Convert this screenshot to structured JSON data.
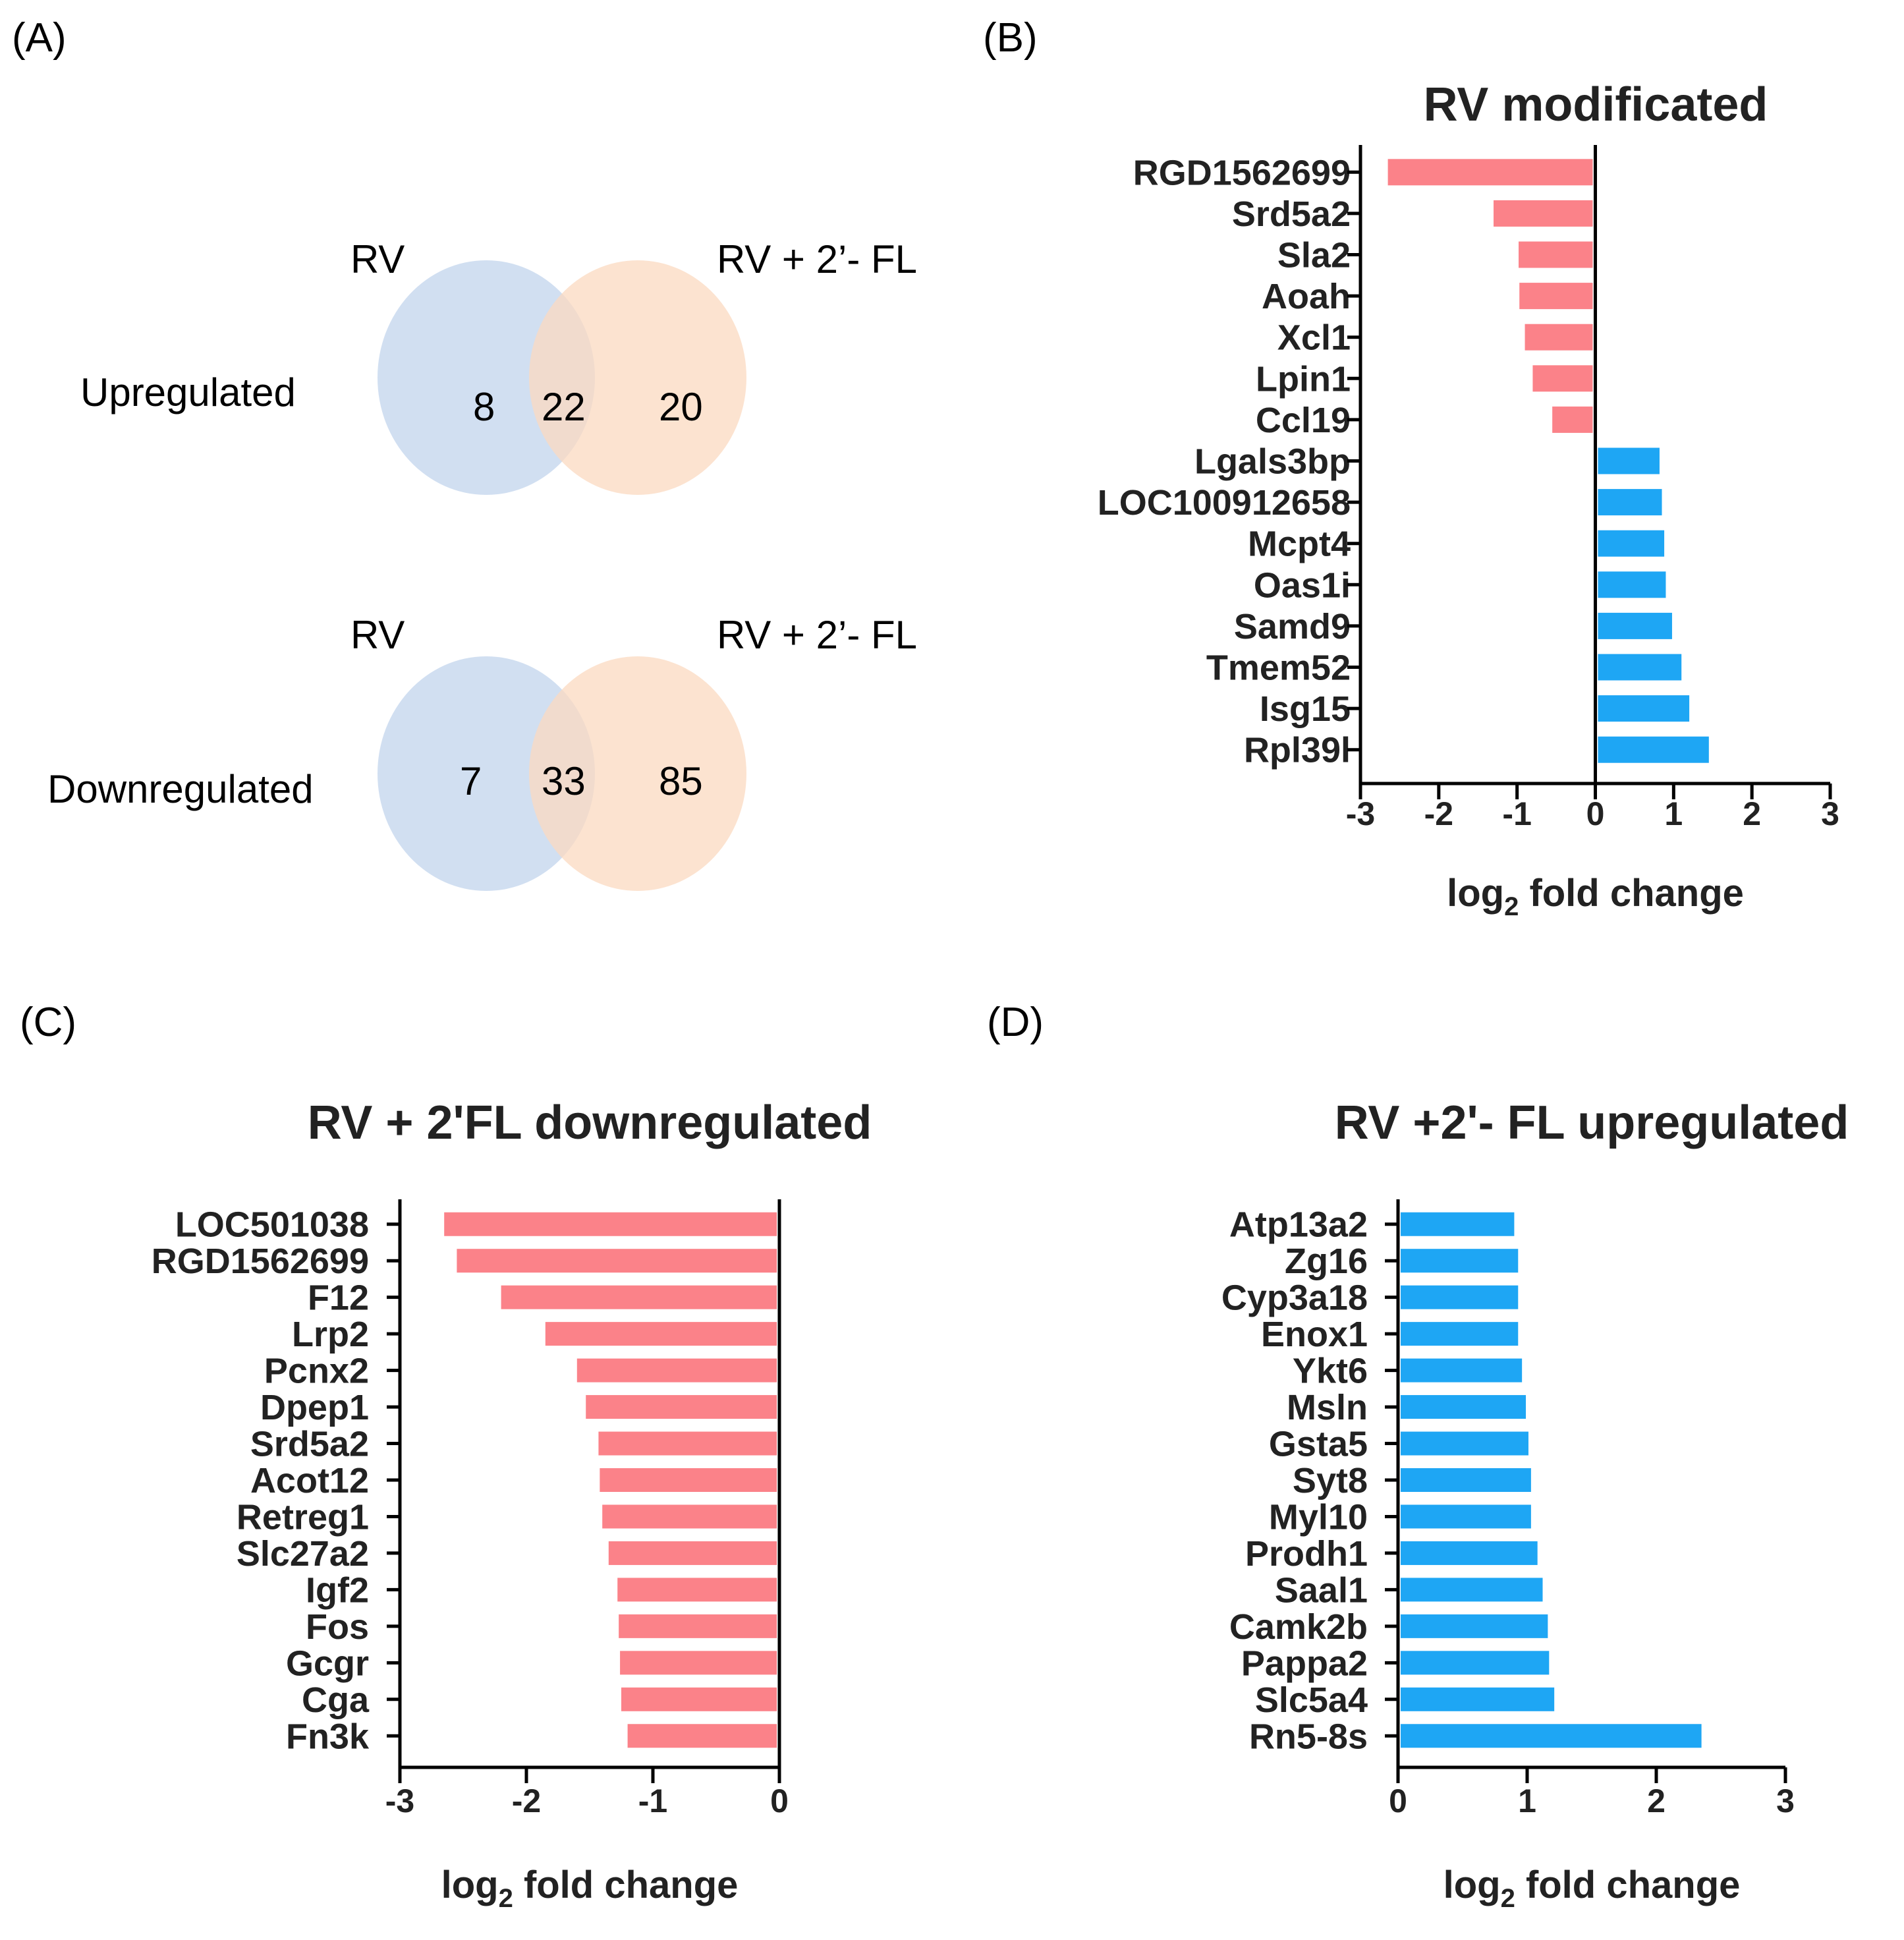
{
  "colors": {
    "red": "#fb8289",
    "blue": "#1ea6f4",
    "venn_left": "#c9d9ef",
    "venn_right": "#fbd9c0",
    "axis": "#000000"
  },
  "panels": {
    "A": {
      "label": "(A)",
      "upregulated": {
        "row_label": "Upregulated",
        "left_set": "RV",
        "right_set": "RV + 2’- FL",
        "left_only": "8",
        "overlap": "22",
        "right_only": "20"
      },
      "downregulated": {
        "row_label": "Downregulated",
        "left_set": "RV",
        "right_set": "RV + 2’- FL",
        "left_only": "7",
        "overlap": "33",
        "right_only": "85"
      }
    },
    "B": {
      "label": "(B)"
    },
    "C": {
      "label": "(C)"
    },
    "D": {
      "label": "(D)"
    }
  },
  "chart_data": [
    {
      "panel": "B",
      "type": "bar",
      "orientation": "horizontal",
      "title": "RV modificated",
      "xlabel_main": "log",
      "xlabel_sub": "2",
      "xlabel_rest": " fold change",
      "xlim": [
        -3,
        3
      ],
      "ticks": [
        -3,
        -2,
        -1,
        0,
        1,
        2,
        3
      ],
      "tick_labels": [
        "-3",
        "-2",
        "-1",
        "0",
        "1",
        "2",
        "3"
      ],
      "categories": [
        "RGD1562699",
        "Srd5a2",
        "Sla2",
        "Aoah",
        "Xcl1",
        "Lpin1",
        "Ccl19",
        "Lgals3bp",
        "LOC100912658",
        "Mcpt4",
        "Oas1i",
        "Samd9",
        "Tmem52",
        "Isg15",
        "Rpl39l"
      ],
      "values": [
        -2.65,
        -1.3,
        -0.98,
        -0.97,
        -0.9,
        -0.8,
        -0.55,
        0.82,
        0.85,
        0.88,
        0.9,
        0.98,
        1.1,
        1.2,
        1.45
      ]
    },
    {
      "panel": "C",
      "type": "bar",
      "orientation": "horizontal",
      "title": "RV + 2'FL downregulated",
      "xlabel_main": "log",
      "xlabel_sub": "2",
      "xlabel_rest": " fold change",
      "xlim": [
        -3,
        0
      ],
      "ticks": [
        -3,
        -2,
        -1,
        0
      ],
      "tick_labels": [
        "-3",
        "-2",
        "-1",
        "0"
      ],
      "categories": [
        "LOC501038",
        "RGD1562699",
        "F12",
        "Lrp2",
        "Pcnx2",
        "Dpep1",
        "Srd5a2",
        "Acot12",
        "Retreg1",
        "Slc27a2",
        "Igf2",
        "Fos",
        "Gcgr",
        "Cga",
        "Fn3k"
      ],
      "values": [
        -2.65,
        -2.55,
        -2.2,
        -1.85,
        -1.6,
        -1.53,
        -1.43,
        -1.42,
        -1.4,
        -1.35,
        -1.28,
        -1.27,
        -1.26,
        -1.25,
        -1.2
      ]
    },
    {
      "panel": "D",
      "type": "bar",
      "orientation": "horizontal",
      "title": "RV +2'- FL upregulated",
      "xlabel_main": "log",
      "xlabel_sub": "2",
      "xlabel_rest": " fold change",
      "xlim": [
        0,
        3
      ],
      "ticks": [
        0,
        1,
        2,
        3
      ],
      "tick_labels": [
        "0",
        "1",
        "2",
        "3"
      ],
      "categories": [
        "Atp13a2",
        "Zg16",
        "Cyp3a18",
        "Enox1",
        "Ykt6",
        "Msln",
        "Gsta5",
        "Syt8",
        "Myl10",
        "Prodh1",
        "Saal1",
        "Camk2b",
        "Pappa2",
        "Slc5a4",
        "Rn5-8s"
      ],
      "values": [
        0.9,
        0.93,
        0.93,
        0.93,
        0.96,
        0.99,
        1.01,
        1.03,
        1.03,
        1.08,
        1.12,
        1.16,
        1.17,
        1.21,
        2.35
      ]
    }
  ]
}
